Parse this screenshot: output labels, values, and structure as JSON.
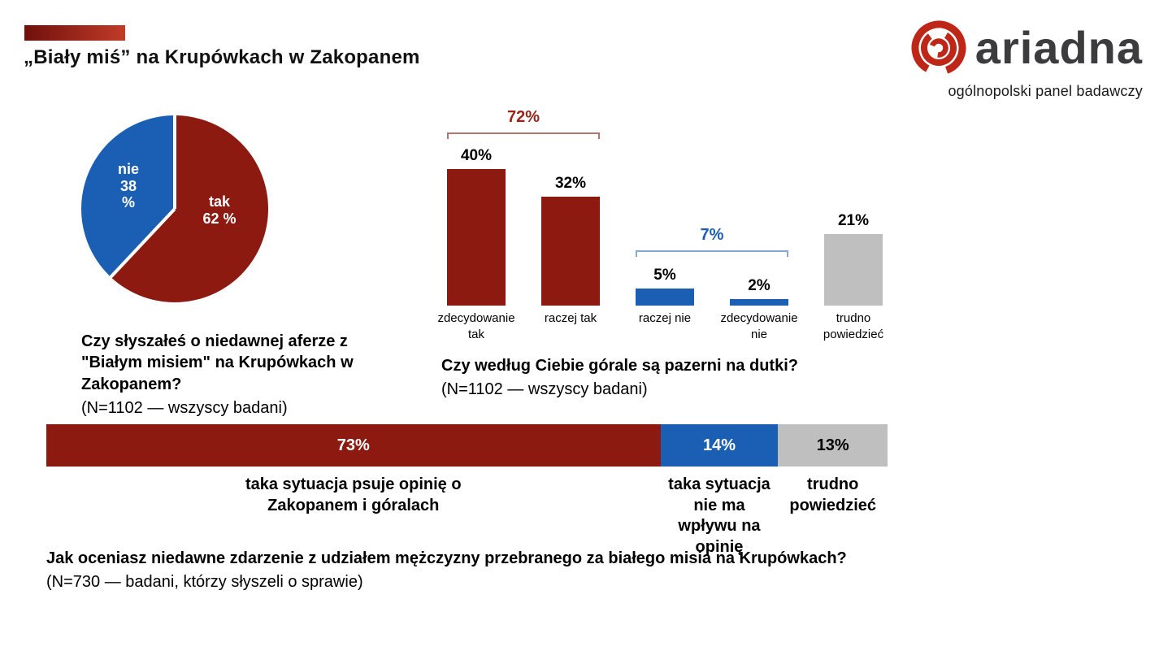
{
  "header": {
    "title": "„Biały miś” na Krupówkach w Zakopanem",
    "accent_bar_colors": [
      "#6F100B",
      "#C23B28"
    ],
    "logo": {
      "name": "ariadna",
      "subtitle": "ogólnopolski panel badawczy",
      "icon": "ariadna-spiral-icon",
      "icon_color": "#BE2718"
    }
  },
  "colors": {
    "dark_red": "#8C1A11",
    "blue": "#1A5FB4",
    "gray": "#BFBFBF",
    "text": "#000000"
  },
  "chart_data": [
    {
      "type": "pie",
      "question": "Czy słyszałeś o niedawnej aferze z \"Białym misiem\" na Krupówkach w Zakopanem?",
      "sample": "(N=1102 — wszyscy badani)",
      "slices": [
        {
          "label": "tak",
          "value": 62,
          "value_label": "62 %",
          "color": "#8C1A11"
        },
        {
          "label": "nie",
          "value": 38,
          "value_label": "38 %",
          "color": "#1A5FB4"
        }
      ]
    },
    {
      "type": "bar",
      "question": "Czy według Ciebie górale są pazerni na dutki?",
      "sample": "(N=1102 — wszyscy badani)",
      "categories": [
        "zdecydowanie tak",
        "raczej tak",
        "raczej nie",
        "zdecydowanie nie",
        "trudno powiedzieć"
      ],
      "values": [
        40,
        32,
        5,
        2,
        21
      ],
      "value_labels": [
        "40%",
        "32%",
        "5%",
        "2%",
        "21%"
      ],
      "colors": [
        "#8C1A11",
        "#8C1A11",
        "#1A5FB4",
        "#1A5FB4",
        "#BFBFBF"
      ],
      "ylim": [
        0,
        45
      ],
      "brackets": [
        {
          "label": "72%",
          "from": 0,
          "to": 1,
          "color": "#9B2418",
          "line_color": "#B0766F"
        },
        {
          "label": "7%",
          "from": 2,
          "to": 3,
          "color": "#1A5FB4",
          "line_color": "#85A9CE"
        }
      ]
    },
    {
      "type": "stacked-bar",
      "question": "Jak oceniasz niedawne zdarzenie z udziałem mężczyzny przebranego za białego misia na Krupówkach?",
      "sample": "(N=730 —  badani, którzy słyszeli o sprawie)",
      "segments": [
        {
          "value": 73,
          "value_label": "73%",
          "label": "taka sytuacja psuje opinię o Zakopanem i góralach",
          "color": "#8C1A11",
          "text_color": "#ffffff"
        },
        {
          "value": 14,
          "value_label": "14%",
          "label": "taka sytuacja nie ma wpływu na opinię",
          "color": "#1A5FB4",
          "text_color": "#ffffff"
        },
        {
          "value": 13,
          "value_label": "13%",
          "label": "trudno powiedzieć",
          "color": "#BFBFBF",
          "text_color": "#000000"
        }
      ]
    }
  ]
}
